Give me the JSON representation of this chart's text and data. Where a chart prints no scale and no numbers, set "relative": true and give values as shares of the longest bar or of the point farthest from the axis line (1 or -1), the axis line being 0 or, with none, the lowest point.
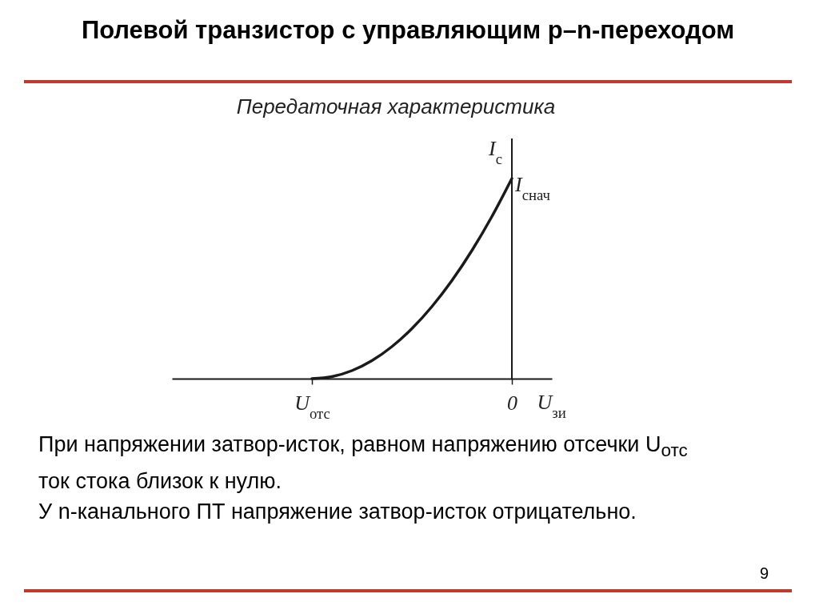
{
  "chart_data": {
    "type": "line",
    "title": "Полевой транзистор с управляющим p–n-переходом",
    "subtitle": "Передаточная характеристика",
    "xlabel": "U$_{зи}$",
    "ylabel": "I$_{с}$",
    "relative": true,
    "categories": [
      null,
      null,
      null,
      null,
      null,
      null,
      null,
      "U$_{отс}$",
      null,
      null,
      null,
      null,
      null,
      null,
      null,
      null,
      null,
      "0",
      null,
      null
    ],
    "series": [
      {
        "color": "#1a1a1a",
        "values": [
          null,
          null,
          null,
          null,
          null,
          null,
          null,
          0,
          0.01,
          0.04,
          0.09,
          0.16,
          0.25,
          0.36,
          0.49,
          0.64,
          0.81,
          1,
          null,
          null
        ]
      }
    ],
    "ref_lines": [
      {
        "axis": "x",
        "value": "0",
        "color": "#1a1a1a"
      }
    ],
    "marker": "none",
    "line_style": "solid",
    "annotations": [
      {
        "text": "I$_{снач}$",
        "x": "0",
        "y": 1
      },
      "При напряжении затвор-исток, равном напряжению отсечки U$_{отс}$ ток стока близок к нулю.",
      "У n-канального ПТ напряжение затвор-исток отрицательно.",
      "9"
    ]
  }
}
